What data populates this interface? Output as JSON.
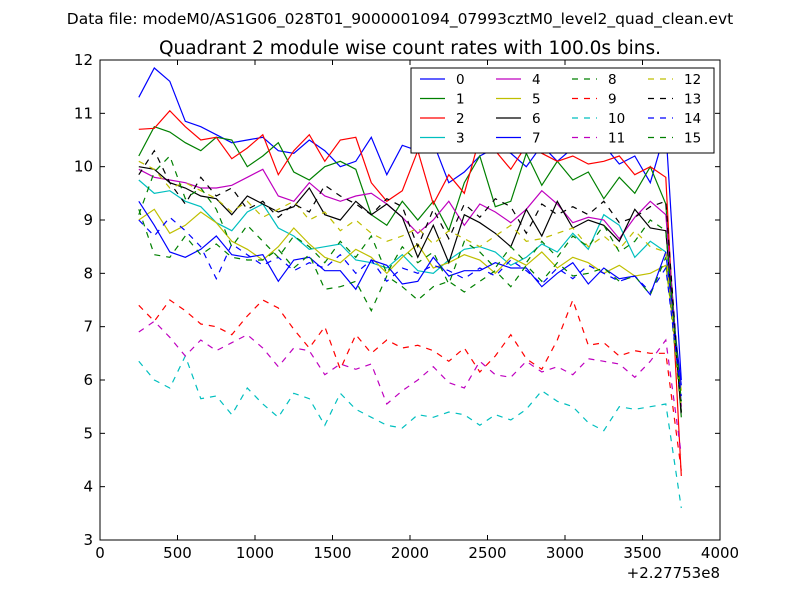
{
  "figure": {
    "suptitle": "Data file: modeM0/AS1G06_028T01_9000001094_07993cztM0_level2_quad_clean.evt"
  },
  "chart_data": {
    "type": "line",
    "title": "Quadrant 2 module wise count rates with 100.0s bins.",
    "xlabel": "",
    "ylabel": "",
    "x_offset_label": "+2.27753e8",
    "xlim": [
      0,
      4000
    ],
    "ylim": [
      3,
      12
    ],
    "xticks": [
      0,
      500,
      1000,
      1500,
      2000,
      2500,
      3000,
      3500,
      4000
    ],
    "yticks": [
      3,
      4,
      5,
      6,
      7,
      8,
      9,
      10,
      11,
      12
    ],
    "grid": false,
    "legend": {
      "placement": "upper-right",
      "columns": 4
    },
    "x": [
      250,
      350,
      450,
      550,
      650,
      750,
      850,
      950,
      1050,
      1150,
      1250,
      1350,
      1450,
      1550,
      1650,
      1750,
      1850,
      1950,
      2050,
      2150,
      2250,
      2350,
      2450,
      2550,
      2650,
      2750,
      2850,
      2950,
      3050,
      3150,
      3250,
      3350,
      3450,
      3550,
      3650,
      3750
    ],
    "series": [
      {
        "name": "0",
        "color": "#0000ff",
        "dash": "solid",
        "values": [
          11.3,
          11.85,
          11.6,
          10.85,
          10.75,
          10.6,
          10.45,
          10.5,
          10.55,
          10.3,
          10.25,
          10.5,
          10.3,
          10.0,
          10.1,
          10.55,
          9.85,
          10.4,
          10.3,
          10.45,
          9.7,
          9.9,
          10.2,
          10.35,
          10.25,
          10.0,
          10.4,
          10.1,
          10.35,
          10.5,
          10.4,
          10.05,
          10.2,
          9.7,
          10.7,
          6.0
        ]
      },
      {
        "name": "1",
        "color": "#008000",
        "dash": "solid",
        "values": [
          10.2,
          10.75,
          10.65,
          10.45,
          10.3,
          10.55,
          10.5,
          10.0,
          10.2,
          10.45,
          9.9,
          9.75,
          10.0,
          10.1,
          9.95,
          9.1,
          8.9,
          9.35,
          9.0,
          9.35,
          8.8,
          9.7,
          10.2,
          9.25,
          9.35,
          10.25,
          9.65,
          10.1,
          9.75,
          9.9,
          9.4,
          9.8,
          9.5,
          10.0,
          9.3,
          5.3
        ]
      },
      {
        "name": "2",
        "color": "#ff0000",
        "dash": "solid",
        "values": [
          10.7,
          10.72,
          11.05,
          10.75,
          10.5,
          10.55,
          10.15,
          10.35,
          10.6,
          9.85,
          10.3,
          10.6,
          10.1,
          10.5,
          10.55,
          9.7,
          9.35,
          9.55,
          10.3,
          9.3,
          9.85,
          9.5,
          10.55,
          10.3,
          9.95,
          10.4,
          10.25,
          10.1,
          10.2,
          10.05,
          10.1,
          10.2,
          9.85,
          10.0,
          9.8,
          4.2
        ]
      },
      {
        "name": "3",
        "color": "#00bfbf",
        "dash": "solid",
        "values": [
          9.75,
          9.5,
          9.55,
          9.35,
          9.25,
          8.95,
          8.8,
          9.15,
          9.3,
          8.85,
          8.7,
          8.45,
          8.5,
          8.55,
          8.25,
          8.2,
          8.1,
          8.35,
          8.05,
          8.0,
          8.25,
          8.45,
          8.5,
          8.4,
          8.15,
          8.3,
          8.55,
          8.4,
          8.75,
          8.45,
          9.1,
          8.9,
          8.3,
          8.6,
          8.4,
          5.6
        ]
      },
      {
        "name": "4",
        "color": "#bf00bf",
        "dash": "solid",
        "values": [
          9.95,
          9.8,
          9.75,
          9.7,
          9.6,
          9.6,
          9.65,
          9.8,
          9.95,
          9.45,
          9.35,
          9.7,
          9.45,
          9.35,
          9.45,
          9.5,
          9.3,
          9.05,
          8.75,
          9.0,
          9.35,
          8.9,
          9.3,
          9.15,
          8.95,
          9.2,
          9.55,
          9.3,
          8.95,
          9.05,
          9.0,
          8.65,
          9.05,
          9.35,
          9.1,
          5.5
        ]
      },
      {
        "name": "5",
        "color": "#bfbf00",
        "dash": "solid",
        "values": [
          9.0,
          9.2,
          8.75,
          8.9,
          9.15,
          8.95,
          8.6,
          8.45,
          8.25,
          8.5,
          8.85,
          8.55,
          8.3,
          8.2,
          8.45,
          8.3,
          8.0,
          8.3,
          8.55,
          8.1,
          8.2,
          8.35,
          8.25,
          8.0,
          8.3,
          8.15,
          8.4,
          8.1,
          8.3,
          8.2,
          8.0,
          8.15,
          7.95,
          8.0,
          8.15,
          5.8
        ]
      },
      {
        "name": "6",
        "color": "#000000",
        "dash": "solid",
        "values": [
          10.0,
          9.95,
          9.7,
          9.6,
          9.45,
          9.4,
          9.1,
          9.45,
          9.3,
          9.15,
          9.25,
          9.6,
          9.1,
          9.0,
          9.35,
          9.1,
          9.3,
          9.05,
          8.3,
          8.9,
          8.2,
          9.1,
          8.95,
          8.75,
          8.5,
          9.2,
          8.7,
          9.35,
          8.85,
          9.0,
          8.9,
          8.6,
          9.2,
          8.85,
          8.8,
          5.4
        ]
      },
      {
        "name": "7",
        "color": "#0000ff",
        "dash": "solid",
        "values": [
          9.35,
          8.9,
          8.4,
          8.3,
          8.45,
          8.7,
          8.35,
          8.3,
          8.35,
          7.85,
          8.25,
          8.3,
          8.05,
          8.05,
          7.7,
          8.25,
          8.15,
          7.8,
          7.85,
          8.3,
          7.95,
          8.05,
          8.05,
          8.2,
          8.1,
          8.1,
          7.75,
          8.0,
          8.2,
          7.8,
          8.1,
          7.9,
          7.95,
          7.6,
          8.4,
          5.9
        ]
      },
      {
        "name": "8",
        "color": "#008000",
        "dash": "dashed",
        "values": [
          9.2,
          8.35,
          8.3,
          8.7,
          8.35,
          8.55,
          8.3,
          8.25,
          8.25,
          8.45,
          8.1,
          8.35,
          7.7,
          7.75,
          7.85,
          7.3,
          7.95,
          7.75,
          7.5,
          7.75,
          7.85,
          7.65,
          7.85,
          8.05,
          7.75,
          8.15,
          7.85,
          8.2,
          7.95,
          8.0,
          8.1,
          7.85,
          7.95,
          7.6,
          8.3,
          5.4
        ]
      },
      {
        "name": "9",
        "color": "#ff0000",
        "dash": "dashed",
        "values": [
          7.4,
          7.1,
          7.5,
          7.3,
          7.05,
          7.0,
          6.85,
          7.2,
          7.5,
          7.35,
          6.95,
          6.6,
          7.0,
          6.2,
          6.85,
          6.5,
          6.75,
          6.6,
          6.65,
          6.55,
          6.35,
          6.6,
          6.15,
          6.45,
          6.85,
          6.4,
          6.2,
          6.75,
          7.5,
          6.65,
          6.7,
          6.45,
          6.55,
          6.5,
          6.5,
          4.3
        ]
      },
      {
        "name": "10",
        "color": "#00bfbf",
        "dash": "dashed",
        "values": [
          6.35,
          6.0,
          5.85,
          6.45,
          5.65,
          5.7,
          5.35,
          5.85,
          5.55,
          5.3,
          5.75,
          5.65,
          5.15,
          5.75,
          5.45,
          5.3,
          5.15,
          5.1,
          5.35,
          5.3,
          5.4,
          5.35,
          5.15,
          5.35,
          5.25,
          5.45,
          5.8,
          5.6,
          5.5,
          5.2,
          5.05,
          5.5,
          5.45,
          5.5,
          5.55,
          3.6
        ]
      },
      {
        "name": "11",
        "color": "#bf00bf",
        "dash": "dashed",
        "values": [
          6.9,
          7.1,
          6.8,
          6.45,
          6.75,
          6.55,
          6.7,
          6.85,
          6.6,
          6.25,
          6.6,
          6.55,
          6.1,
          6.3,
          6.2,
          6.3,
          5.55,
          5.8,
          6.0,
          6.25,
          5.95,
          5.85,
          6.35,
          6.1,
          6.05,
          6.35,
          6.15,
          6.25,
          6.1,
          6.4,
          6.35,
          6.3,
          6.05,
          6.35,
          6.75,
          4.6
        ]
      },
      {
        "name": "12",
        "color": "#bfbf00",
        "dash": "dashed",
        "values": [
          10.1,
          9.95,
          9.6,
          9.7,
          9.55,
          9.4,
          9.15,
          9.35,
          9.05,
          9.2,
          9.35,
          9.0,
          9.15,
          8.8,
          9.0,
          8.75,
          8.6,
          8.7,
          8.85,
          8.55,
          8.8,
          8.65,
          8.5,
          8.7,
          8.9,
          8.6,
          8.65,
          8.75,
          8.85,
          8.5,
          8.7,
          8.45,
          8.8,
          8.5,
          8.4,
          5.5
        ]
      },
      {
        "name": "13",
        "color": "#000000",
        "dash": "dashed",
        "values": [
          9.85,
          10.3,
          9.7,
          9.3,
          9.8,
          9.45,
          9.6,
          9.2,
          9.35,
          9.05,
          9.3,
          9.15,
          9.65,
          9.45,
          9.3,
          9.1,
          9.4,
          9.25,
          8.5,
          9.2,
          8.65,
          9.3,
          9.05,
          9.4,
          9.25,
          8.75,
          9.3,
          9.1,
          9.25,
          9.1,
          9.35,
          8.95,
          9.05,
          9.25,
          9.35,
          5.35
        ]
      },
      {
        "name": "14",
        "color": "#0000ff",
        "dash": "dashed",
        "values": [
          9.0,
          8.7,
          9.05,
          8.8,
          8.5,
          7.9,
          8.55,
          8.35,
          8.15,
          8.3,
          8.05,
          8.2,
          8.1,
          8.35,
          8.0,
          8.25,
          7.85,
          8.1,
          8.0,
          8.15,
          8.05,
          7.9,
          8.1,
          7.95,
          8.25,
          8.05,
          7.8,
          8.1,
          7.9,
          8.15,
          8.0,
          7.85,
          7.95,
          7.65,
          8.1,
          5.7
        ]
      },
      {
        "name": "15",
        "color": "#008000",
        "dash": "dashed",
        "values": [
          9.1,
          9.9,
          10.2,
          9.4,
          9.6,
          9.2,
          8.5,
          8.9,
          8.6,
          8.3,
          8.7,
          8.5,
          8.2,
          8.6,
          8.3,
          8.7,
          8.0,
          8.5,
          8.2,
          8.4,
          7.8,
          8.6,
          8.4,
          8.1,
          8.5,
          8.2,
          8.6,
          8.3,
          8.7,
          8.5,
          8.9,
          8.4,
          8.6,
          9.0,
          8.8,
          5.6
        ]
      }
    ]
  }
}
